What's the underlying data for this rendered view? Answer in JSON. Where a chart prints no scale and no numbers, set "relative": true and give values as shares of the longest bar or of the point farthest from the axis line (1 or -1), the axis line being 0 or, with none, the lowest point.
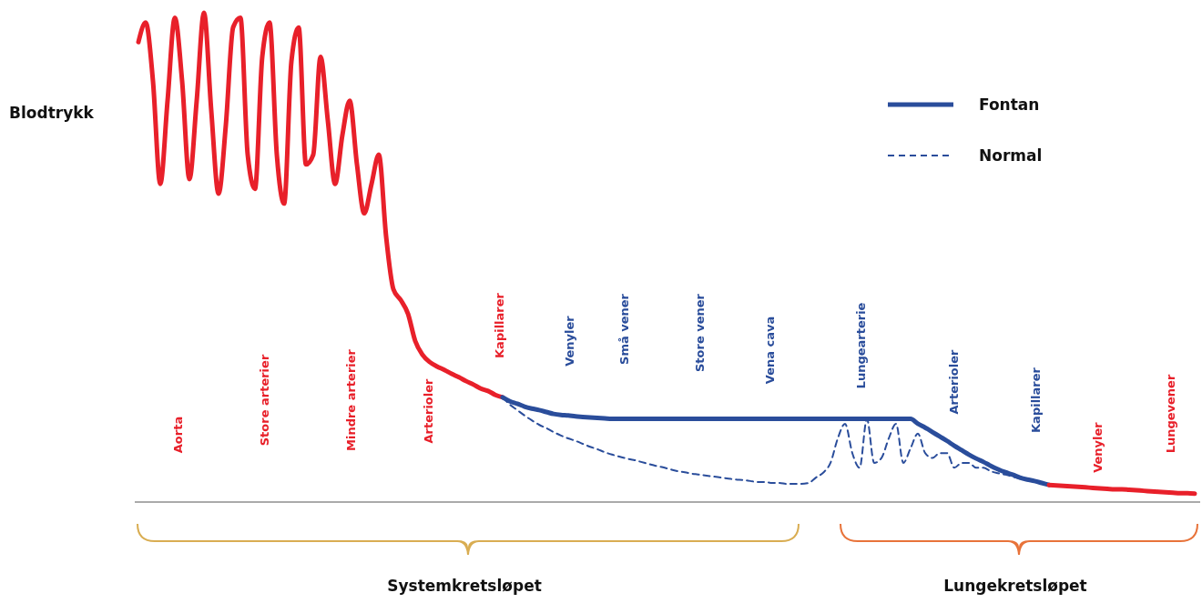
{
  "chart_data": {
    "type": "line",
    "relative": true,
    "ylabel": "Blodtrykk",
    "legend": "top right",
    "categories": [
      null,
      null,
      null,
      null,
      null,
      null,
      null,
      null,
      null,
      null,
      null,
      null,
      null,
      null,
      null,
      null,
      null,
      null,
      null,
      null,
      null,
      null,
      null,
      null,
      null,
      null,
      null,
      null,
      null,
      null,
      null,
      null,
      null,
      null,
      null,
      null,
      null,
      null,
      null,
      null,
      null,
      null,
      null,
      null,
      null,
      null,
      null,
      null,
      null,
      null,
      null,
      null,
      null,
      null,
      null,
      null,
      null,
      null,
      null,
      null,
      null,
      null,
      null,
      null,
      null,
      null,
      null,
      null,
      null,
      null,
      null,
      null,
      null,
      null,
      null,
      null,
      null,
      null,
      null,
      null,
      null,
      null,
      null,
      null,
      null,
      null,
      null,
      null,
      null,
      null,
      null,
      null,
      null,
      null,
      null,
      null,
      null,
      null,
      null,
      null,
      null,
      null,
      null,
      null,
      null,
      null,
      null,
      null,
      null,
      null,
      null,
      null,
      null,
      null,
      null,
      null,
      null,
      null,
      null,
      null,
      null,
      null,
      null,
      null,
      null,
      null,
      null,
      null,
      null,
      null,
      null,
      null,
      null,
      null,
      null,
      null,
      null,
      null,
      null,
      null,
      null,
      null,
      null,
      null,
      null,
      null
    ],
    "series": [
      {
        "color": "#e8202a",
        "values": [
          0.94,
          0.98,
          0.86,
          0.65,
          0.82,
          0.99,
          0.86,
          0.66,
          0.82,
          1.0,
          0.8,
          0.63,
          0.77,
          0.97,
          0.99,
          0.71,
          0.64,
          0.91,
          0.98,
          0.71,
          0.61,
          0.9,
          0.97,
          0.69,
          0.71,
          0.91,
          0.78,
          0.65,
          0.75,
          0.82,
          0.69,
          0.59,
          0.65,
          0.71,
          0.543,
          0.435,
          0.413,
          0.385,
          0.329,
          0.301,
          0.286,
          0.277,
          0.27,
          0.262,
          0.255,
          0.247,
          0.24,
          0.232,
          0.227,
          0.219,
          0.214,
          null,
          null,
          null,
          null,
          null,
          null,
          null,
          null,
          null,
          null,
          null,
          null,
          null,
          null,
          null,
          null,
          null,
          null,
          null,
          null,
          null,
          null,
          null,
          null,
          null,
          null,
          null,
          null,
          null,
          null,
          null,
          null,
          null,
          null,
          null,
          null,
          null,
          null,
          null,
          null,
          null,
          null,
          null,
          null,
          null,
          null,
          null,
          null,
          null,
          null,
          null,
          null,
          null,
          null,
          null,
          null,
          null,
          null,
          null,
          null,
          null,
          null,
          null,
          null,
          null,
          null,
          null,
          null,
          null,
          null,
          null,
          null,
          null,
          null,
          null,
          null,
          null,
          null,
          null,
          null,
          null,
          null,
          null,
          null,
          null,
          null,
          null,
          null,
          null,
          null,
          null,
          null,
          null,
          null,
          null
        ]
      },
      {
        "name": "Fontan",
        "color": "#2a4d9b",
        "line_style": "solid",
        "values": [
          null,
          null,
          null,
          null,
          null,
          null,
          null,
          null,
          null,
          null,
          null,
          null,
          null,
          null,
          null,
          null,
          null,
          null,
          null,
          null,
          null,
          null,
          null,
          null,
          null,
          null,
          null,
          null,
          null,
          null,
          null,
          null,
          null,
          null,
          null,
          null,
          null,
          null,
          null,
          null,
          null,
          null,
          null,
          null,
          null,
          null,
          null,
          null,
          null,
          null,
          0.214,
          0.206,
          0.201,
          0.195,
          0.191,
          0.188,
          0.184,
          0.18,
          0.178,
          0.177,
          0.175,
          0.174,
          0.173,
          0.172,
          0.171,
          0.17,
          0.17,
          0.17,
          0.17,
          0.17,
          0.17,
          0.17,
          0.17,
          0.17,
          0.17,
          0.17,
          0.17,
          0.17,
          0.17,
          0.17,
          0.17,
          0.17,
          0.17,
          0.17,
          0.17,
          0.17,
          0.17,
          0.17,
          0.17,
          0.17,
          0.17,
          0.17,
          0.17,
          0.17,
          0.17,
          0.17,
          0.17,
          0.17,
          0.17,
          0.17,
          0.17,
          0.17,
          0.17,
          0.17,
          0.17,
          0.17,
          0.17,
          0.16,
          0.152,
          0.143,
          0.134,
          0.125,
          0.115,
          0.106,
          0.097,
          0.089,
          0.082,
          0.074,
          0.067,
          0.061,
          0.056,
          0.05,
          0.046,
          0.043,
          0.039,
          0.035,
          null,
          null,
          null,
          null,
          null,
          null,
          null,
          null,
          null,
          null,
          null,
          null,
          null,
          null,
          null,
          null,
          null,
          null,
          null,
          null
        ]
      },
      {
        "name": "Normal",
        "color": "#2a4d9b",
        "line_style": "dashed",
        "values": [
          null,
          null,
          null,
          null,
          null,
          null,
          null,
          null,
          null,
          null,
          null,
          null,
          null,
          null,
          null,
          null,
          null,
          null,
          null,
          null,
          null,
          null,
          null,
          null,
          null,
          null,
          null,
          null,
          null,
          null,
          null,
          null,
          null,
          null,
          null,
          null,
          null,
          null,
          null,
          null,
          null,
          null,
          null,
          null,
          null,
          null,
          null,
          null,
          null,
          null,
          0.214,
          0.199,
          0.188,
          0.177,
          0.167,
          0.158,
          0.151,
          0.143,
          0.136,
          0.13,
          0.125,
          0.119,
          0.113,
          0.108,
          0.102,
          0.097,
          0.093,
          0.089,
          0.086,
          0.082,
          0.078,
          0.074,
          0.071,
          0.067,
          0.063,
          0.061,
          0.058,
          0.056,
          0.054,
          0.052,
          0.05,
          0.048,
          0.046,
          0.045,
          0.043,
          0.041,
          0.041,
          0.039,
          0.039,
          0.037,
          0.037,
          0.037,
          0.039,
          0.05,
          0.06,
          0.08,
          0.13,
          0.16,
          0.1,
          0.07,
          0.17,
          0.08,
          0.09,
          0.13,
          0.16,
          0.08,
          0.11,
          0.14,
          0.1,
          0.09,
          0.1,
          0.1,
          0.07,
          0.08,
          0.08,
          0.07,
          0.07,
          0.063,
          0.059,
          0.056,
          0.052,
          0.048,
          0.045,
          0.041,
          0.039,
          0.035,
          null,
          null,
          null,
          null,
          null,
          null,
          null,
          null,
          null,
          null,
          null,
          null,
          null,
          null,
          null,
          null,
          null,
          null,
          null,
          null
        ]
      },
      {
        "color": "#e8202a",
        "values": [
          null,
          null,
          null,
          null,
          null,
          null,
          null,
          null,
          null,
          null,
          null,
          null,
          null,
          null,
          null,
          null,
          null,
          null,
          null,
          null,
          null,
          null,
          null,
          null,
          null,
          null,
          null,
          null,
          null,
          null,
          null,
          null,
          null,
          null,
          null,
          null,
          null,
          null,
          null,
          null,
          null,
          null,
          null,
          null,
          null,
          null,
          null,
          null,
          null,
          null,
          null,
          null,
          null,
          null,
          null,
          null,
          null,
          null,
          null,
          null,
          null,
          null,
          null,
          null,
          null,
          null,
          null,
          null,
          null,
          null,
          null,
          null,
          null,
          null,
          null,
          null,
          null,
          null,
          null,
          null,
          null,
          null,
          null,
          null,
          null,
          null,
          null,
          null,
          null,
          null,
          null,
          null,
          null,
          null,
          null,
          null,
          null,
          null,
          null,
          null,
          null,
          null,
          null,
          null,
          null,
          null,
          null,
          null,
          null,
          null,
          null,
          null,
          null,
          null,
          null,
          null,
          null,
          null,
          null,
          null,
          null,
          null,
          null,
          null,
          null,
          0.035,
          0.034,
          0.033,
          0.032,
          0.031,
          0.03,
          0.029,
          0.028,
          0.027,
          0.026,
          0.026,
          0.025,
          0.024,
          0.023,
          0.022,
          0.021,
          0.02,
          0.019,
          0.018,
          0.018,
          0.017
        ]
      }
    ],
    "annotations": [
      "Aorta",
      "Store arterier",
      "Mindre arterier",
      "Arterioler",
      "Kapillarer",
      "Venyler",
      "Små vener",
      "Store vener",
      "Vena cava",
      "Lungearterie",
      "Arterioler",
      "Kapillarer",
      "Venyler",
      "Lungevener",
      "Systemkretsløpet",
      "Lungekretsløpet"
    ]
  }
}
